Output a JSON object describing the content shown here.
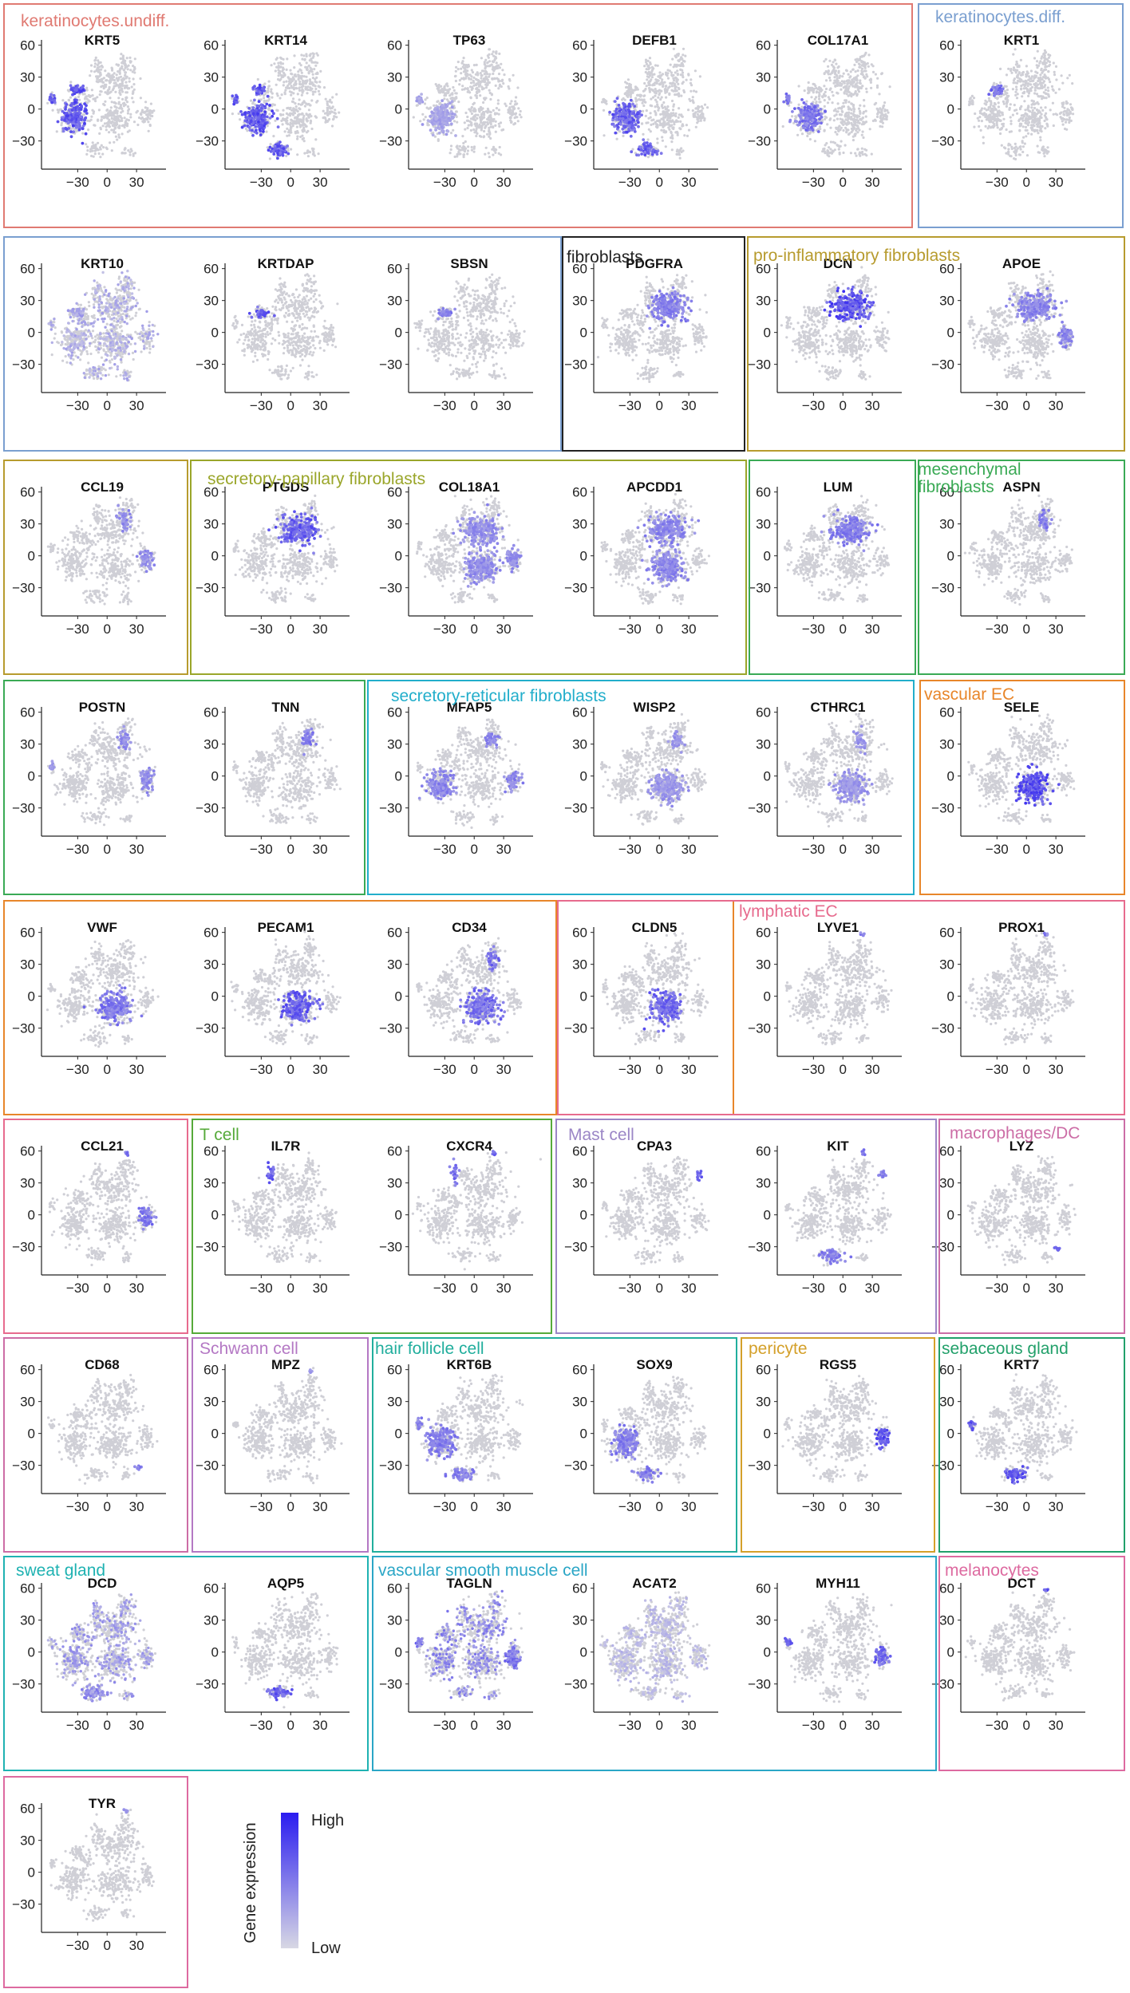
{
  "groups": [
    {
      "label": "keratinocytes.undiff.",
      "color": "#e07a72"
    },
    {
      "label": "keratinocytes.diff.",
      "color": "#7a9fd0"
    },
    {
      "label": "fibroblasts",
      "color": "#222222"
    },
    {
      "label": "pro-inflammatory fibroblasts",
      "color": "#b79b2e"
    },
    {
      "label": "secretory-papillary fibroblasts",
      "color": "#9aa62a"
    },
    {
      "label": "mesenchymal fibroblasts",
      "color": "#3aaa55"
    },
    {
      "label": "secretory-reticular fibroblasts",
      "color": "#22aecb"
    },
    {
      "label": "vascular EC",
      "color": "#e8862a"
    },
    {
      "label": "lymphatic EC",
      "color": "#e76b8e"
    },
    {
      "label": "T cell",
      "color": "#56aa3a"
    },
    {
      "label": "Mast cell",
      "color": "#9b86c6"
    },
    {
      "label": "macrophages/DC",
      "color": "#cc6da6"
    },
    {
      "label": "Schwann cell",
      "color": "#b478c4"
    },
    {
      "label": "hair follicle cell",
      "color": "#21ae9d"
    },
    {
      "label": "pericyte",
      "color": "#d4a02a"
    },
    {
      "label": "sebaceous gland",
      "color": "#22a06a"
    },
    {
      "label": "sweat gland",
      "color": "#1fb2b2"
    },
    {
      "label": "vascular smooth muscle cell",
      "color": "#2aa6c6"
    },
    {
      "label": "melanocytes",
      "color": "#dd6aa0"
    }
  ],
  "legend": {
    "title": "Gene expression",
    "high": "High",
    "low": "Low",
    "high_color": "#2a1cf0",
    "low_color": "#d8d8e4"
  },
  "chart_data": [
    {
      "type": "scatter",
      "title": "KRT5",
      "group": "keratinocytes.undiff.",
      "expressed_in": [
        "ker",
        "kd",
        "lg"
      ],
      "intensity": 0.85,
      "x_ticks": [
        -30,
        0,
        30
      ],
      "y_ticks": [
        60,
        30,
        0,
        -30
      ]
    },
    {
      "type": "scatter",
      "title": "KRT14",
      "group": "keratinocytes.undiff.",
      "expressed_in": [
        "ker",
        "kd",
        "lg",
        "bl"
      ],
      "intensity": 0.85,
      "x_ticks": [
        -30,
        0,
        30
      ],
      "y_ticks": [
        60,
        30,
        0,
        -30
      ]
    },
    {
      "type": "scatter",
      "title": "TP63",
      "group": "keratinocytes.undiff.",
      "expressed_in": [
        "ker",
        "lg"
      ],
      "intensity": 0.35,
      "x_ticks": [
        -30,
        0,
        30
      ],
      "y_ticks": [
        60,
        30,
        0,
        -30
      ]
    },
    {
      "type": "scatter",
      "title": "DEFB1",
      "group": "keratinocytes.undiff.",
      "expressed_in": [
        "ker",
        "bl"
      ],
      "intensity": 0.8,
      "x_ticks": [
        -30,
        0,
        30
      ],
      "y_ticks": [
        60,
        30,
        0,
        -30
      ]
    },
    {
      "type": "scatter",
      "title": "COL17A1",
      "group": "keratinocytes.undiff.",
      "expressed_in": [
        "ker",
        "lg"
      ],
      "intensity": 0.65,
      "x_ticks": [
        -30,
        0,
        30
      ],
      "y_ticks": [
        60,
        30,
        0,
        -30
      ]
    },
    {
      "type": "scatter",
      "title": "KRT1",
      "group": "keratinocytes.diff.",
      "expressed_in": [
        "kd"
      ],
      "intensity": 0.75,
      "x_ticks": [
        -30,
        0,
        30
      ],
      "y_ticks": [
        60,
        30,
        0,
        -30
      ]
    },
    {
      "type": "scatter",
      "title": "KRT10",
      "group": "keratinocytes.diff.",
      "expressed_in": [
        "kd",
        "all"
      ],
      "intensity": 0.4,
      "x_ticks": [
        -30,
        0,
        30
      ],
      "y_ticks": [
        60,
        30,
        0,
        -30
      ]
    },
    {
      "type": "scatter",
      "title": "KRTDAP",
      "group": "keratinocytes.diff.",
      "expressed_in": [
        "kd"
      ],
      "intensity": 0.8,
      "x_ticks": [
        -30,
        0,
        30
      ],
      "y_ticks": [
        60,
        30,
        0,
        -30
      ]
    },
    {
      "type": "scatter",
      "title": "SBSN",
      "group": "keratinocytes.diff.",
      "expressed_in": [
        "kd"
      ],
      "intensity": 0.6,
      "x_ticks": [
        -30,
        0,
        30
      ],
      "y_ticks": [
        60,
        30,
        0,
        -30
      ]
    },
    {
      "type": "scatter",
      "title": "PDGFRA",
      "group": "fibroblasts",
      "expressed_in": [
        "fib"
      ],
      "intensity": 0.6,
      "x_ticks": [
        -30,
        0,
        30
      ],
      "y_ticks": [
        60,
        30,
        0,
        -30
      ]
    },
    {
      "type": "scatter",
      "title": "DCN",
      "group": "pro-inflammatory fibroblasts",
      "expressed_in": [
        "fib"
      ],
      "intensity": 0.9,
      "x_ticks": [
        -30,
        0,
        30
      ],
      "y_ticks": [
        60,
        30,
        0,
        -30
      ]
    },
    {
      "type": "scatter",
      "title": "APOE",
      "group": "pro-inflammatory fibroblasts",
      "expressed_in": [
        "fib",
        "rt"
      ],
      "intensity": 0.55,
      "x_ticks": [
        -30,
        0,
        30
      ],
      "y_ticks": [
        60,
        30,
        0,
        -30
      ]
    },
    {
      "type": "scatter",
      "title": "CCL19",
      "group": "pro-inflammatory fibroblasts",
      "expressed_in": [
        "fibR",
        "rt"
      ],
      "intensity": 0.5,
      "x_ticks": [
        -30,
        0,
        30
      ],
      "y_ticks": [
        60,
        30,
        0,
        -30
      ]
    },
    {
      "type": "scatter",
      "title": "PTGDS",
      "group": "secretory-papillary fibroblasts",
      "expressed_in": [
        "fib"
      ],
      "intensity": 0.8,
      "x_ticks": [
        -30,
        0,
        30
      ],
      "y_ticks": [
        60,
        30,
        0,
        -30
      ]
    },
    {
      "type": "scatter",
      "title": "COL18A1",
      "group": "secretory-papillary fibroblasts",
      "expressed_in": [
        "fib",
        "vec",
        "rt"
      ],
      "intensity": 0.5,
      "x_ticks": [
        -30,
        0,
        30
      ],
      "y_ticks": [
        60,
        30,
        0,
        -30
      ]
    },
    {
      "type": "scatter",
      "title": "APCDD1",
      "group": "secretory-papillary fibroblasts",
      "expressed_in": [
        "fib",
        "vec"
      ],
      "intensity": 0.55,
      "x_ticks": [
        -30,
        0,
        30
      ],
      "y_ticks": [
        60,
        30,
        0,
        -30
      ]
    },
    {
      "type": "scatter",
      "title": "LUM",
      "group": "secretory-papillary fibroblasts",
      "expressed_in": [
        "fib"
      ],
      "intensity": 0.6,
      "x_ticks": [
        -30,
        0,
        30
      ],
      "y_ticks": [
        60,
        30,
        0,
        -30
      ]
    },
    {
      "type": "scatter",
      "title": "ASPN",
      "group": "mesenchymal fibroblasts",
      "expressed_in": [
        "fibR"
      ],
      "intensity": 0.6,
      "x_ticks": [
        -30,
        0,
        30
      ],
      "y_ticks": [
        60,
        30,
        0,
        -30
      ]
    },
    {
      "type": "scatter",
      "title": "POSTN",
      "group": "mesenchymal fibroblasts",
      "expressed_in": [
        "fibR",
        "lg",
        "rt"
      ],
      "intensity": 0.5,
      "x_ticks": [
        -30,
        0,
        30
      ],
      "y_ticks": [
        60,
        30,
        0,
        -30
      ]
    },
    {
      "type": "scatter",
      "title": "TNN",
      "group": "mesenchymal fibroblasts",
      "expressed_in": [
        "fibR"
      ],
      "intensity": 0.6,
      "x_ticks": [
        -30,
        0,
        30
      ],
      "y_ticks": [
        60,
        30,
        0,
        -30
      ]
    },
    {
      "type": "scatter",
      "title": "MFAP5",
      "group": "secretory-reticular fibroblasts",
      "expressed_in": [
        "fibR",
        "rt",
        "ker"
      ],
      "intensity": 0.55,
      "x_ticks": [
        -30,
        0,
        30
      ],
      "y_ticks": [
        60,
        30,
        0,
        -30
      ]
    },
    {
      "type": "scatter",
      "title": "WISP2",
      "group": "secretory-reticular fibroblasts",
      "expressed_in": [
        "fibR",
        "vec"
      ],
      "intensity": 0.45,
      "x_ticks": [
        -30,
        0,
        30
      ],
      "y_ticks": [
        60,
        30,
        0,
        -30
      ]
    },
    {
      "type": "scatter",
      "title": "CTHRC1",
      "group": "secretory-reticular fibroblasts",
      "expressed_in": [
        "fibR",
        "vec"
      ],
      "intensity": 0.45,
      "x_ticks": [
        -30,
        0,
        30
      ],
      "y_ticks": [
        60,
        30,
        0,
        -30
      ]
    },
    {
      "type": "scatter",
      "title": "SELE",
      "group": "vascular EC",
      "expressed_in": [
        "vec"
      ],
      "intensity": 0.9,
      "x_ticks": [
        -30,
        0,
        30
      ],
      "y_ticks": [
        60,
        30,
        0,
        -30
      ]
    },
    {
      "type": "scatter",
      "title": "VWF",
      "group": "vascular EC",
      "expressed_in": [
        "vec"
      ],
      "intensity": 0.65,
      "x_ticks": [
        -30,
        0,
        30
      ],
      "y_ticks": [
        60,
        30,
        0,
        -30
      ]
    },
    {
      "type": "scatter",
      "title": "PECAM1",
      "group": "vascular EC",
      "expressed_in": [
        "vec"
      ],
      "intensity": 0.8,
      "x_ticks": [
        -30,
        0,
        30
      ],
      "y_ticks": [
        60,
        30,
        0,
        -30
      ]
    },
    {
      "type": "scatter",
      "title": "CD34",
      "group": "vascular EC",
      "expressed_in": [
        "vec",
        "fibR"
      ],
      "intensity": 0.7,
      "x_ticks": [
        -30,
        0,
        30
      ],
      "y_ticks": [
        60,
        30,
        0,
        -30
      ]
    },
    {
      "type": "scatter",
      "title": "CLDN5",
      "group": "vascular EC",
      "expressed_in": [
        "vec"
      ],
      "intensity": 0.75,
      "x_ticks": [
        -30,
        0,
        30
      ],
      "y_ticks": [
        60,
        30,
        0,
        -30
      ]
    },
    {
      "type": "scatter",
      "title": "LYVE1",
      "group": "lymphatic EC",
      "expressed_in": [
        "top"
      ],
      "intensity": 0.6,
      "x_ticks": [
        -30,
        0,
        30
      ],
      "y_ticks": [
        60,
        30,
        0,
        -30
      ]
    },
    {
      "type": "scatter",
      "title": "PROX1",
      "group": "lymphatic EC",
      "expressed_in": [
        "top"
      ],
      "intensity": 0.6,
      "x_ticks": [
        -30,
        0,
        30
      ],
      "y_ticks": [
        60,
        30,
        0,
        -30
      ]
    },
    {
      "type": "scatter",
      "title": "CCL21",
      "group": "lymphatic EC",
      "expressed_in": [
        "top",
        "rt"
      ],
      "intensity": 0.65,
      "x_ticks": [
        -30,
        0,
        30
      ],
      "y_ticks": [
        60,
        30,
        0,
        -30
      ]
    },
    {
      "type": "scatter",
      "title": "IL7R",
      "group": "T cell",
      "expressed_in": [
        "tc"
      ],
      "intensity": 0.8,
      "x_ticks": [
        -30,
        0,
        30
      ],
      "y_ticks": [
        60,
        30,
        0,
        -30
      ]
    },
    {
      "type": "scatter",
      "title": "CXCR4",
      "group": "T cell",
      "expressed_in": [
        "tc",
        "top"
      ],
      "intensity": 0.7,
      "x_ticks": [
        -30,
        0,
        30
      ],
      "y_ticks": [
        60,
        30,
        0,
        -30
      ]
    },
    {
      "type": "scatter",
      "title": "CPA3",
      "group": "Mast cell",
      "expressed_in": [
        "mc"
      ],
      "intensity": 0.75,
      "x_ticks": [
        -30,
        0,
        30
      ],
      "y_ticks": [
        60,
        30,
        0,
        -30
      ]
    },
    {
      "type": "scatter",
      "title": "KIT",
      "group": "Mast cell",
      "expressed_in": [
        "mc",
        "top",
        "bl"
      ],
      "intensity": 0.6,
      "x_ticks": [
        -30,
        0,
        30
      ],
      "y_ticks": [
        60,
        30,
        0,
        -30
      ]
    },
    {
      "type": "scatter",
      "title": "LYZ",
      "group": "macrophages/DC",
      "expressed_in": [
        "mac"
      ],
      "intensity": 0.75,
      "x_ticks": [
        -30,
        0,
        30
      ],
      "y_ticks": [
        60,
        30,
        0,
        -30
      ]
    },
    {
      "type": "scatter",
      "title": "CD68",
      "group": "macrophages/DC",
      "expressed_in": [
        "mac"
      ],
      "intensity": 0.6,
      "x_ticks": [
        -30,
        0,
        30
      ],
      "y_ticks": [
        60,
        30,
        0,
        -30
      ]
    },
    {
      "type": "scatter",
      "title": "MPZ",
      "group": "Schwann cell",
      "expressed_in": [
        "top"
      ],
      "intensity": 0.4,
      "x_ticks": [
        -30,
        0,
        30
      ],
      "y_ticks": [
        60,
        30,
        0,
        -30
      ]
    },
    {
      "type": "scatter",
      "title": "KRT6B",
      "group": "hair follicle cell",
      "expressed_in": [
        "ker",
        "lg",
        "bl"
      ],
      "intensity": 0.6,
      "x_ticks": [
        -30,
        0,
        30
      ],
      "y_ticks": [
        60,
        30,
        0,
        -30
      ]
    },
    {
      "type": "scatter",
      "title": "SOX9",
      "group": "hair follicle cell",
      "expressed_in": [
        "ker",
        "bl"
      ],
      "intensity": 0.6,
      "x_ticks": [
        -30,
        0,
        30
      ],
      "y_ticks": [
        60,
        30,
        0,
        -30
      ]
    },
    {
      "type": "scatter",
      "title": "RGS5",
      "group": "pericyte",
      "expressed_in": [
        "rt"
      ],
      "intensity": 0.9,
      "x_ticks": [
        -30,
        0,
        30
      ],
      "y_ticks": [
        60,
        30,
        0,
        -30
      ]
    },
    {
      "type": "scatter",
      "title": "KRT7",
      "group": "sebaceous gland",
      "expressed_in": [
        "bl",
        "lg"
      ],
      "intensity": 0.85,
      "x_ticks": [
        -30,
        0,
        30
      ],
      "y_ticks": [
        60,
        30,
        0,
        -30
      ]
    },
    {
      "type": "scatter",
      "title": "DCD",
      "group": "sweat gland",
      "expressed_in": [
        "bl",
        "all"
      ],
      "intensity": 0.55,
      "x_ticks": [
        -30,
        0,
        30
      ],
      "y_ticks": [
        60,
        30,
        0,
        -30
      ]
    },
    {
      "type": "scatter",
      "title": "AQP5",
      "group": "sweat gland",
      "expressed_in": [
        "bl"
      ],
      "intensity": 0.8,
      "x_ticks": [
        -30,
        0,
        30
      ],
      "y_ticks": [
        60,
        30,
        0,
        -30
      ]
    },
    {
      "type": "scatter",
      "title": "TAGLN",
      "group": "vascular smooth muscle cell",
      "expressed_in": [
        "rt",
        "lg",
        "all"
      ],
      "intensity": 0.7,
      "x_ticks": [
        -30,
        0,
        30
      ],
      "y_ticks": [
        60,
        30,
        0,
        -30
      ]
    },
    {
      "type": "scatter",
      "title": "ACAT2",
      "group": "vascular smooth muscle cell",
      "expressed_in": [
        "all"
      ],
      "intensity": 0.3,
      "x_ticks": [
        -30,
        0,
        30
      ],
      "y_ticks": [
        60,
        30,
        0,
        -30
      ]
    },
    {
      "type": "scatter",
      "title": "MYH11",
      "group": "vascular smooth muscle cell",
      "expressed_in": [
        "rt",
        "lg"
      ],
      "intensity": 0.75,
      "x_ticks": [
        -30,
        0,
        30
      ],
      "y_ticks": [
        60,
        30,
        0,
        -30
      ]
    },
    {
      "type": "scatter",
      "title": "DCT",
      "group": "melanocytes",
      "expressed_in": [
        "top"
      ],
      "intensity": 0.85,
      "x_ticks": [
        -30,
        0,
        30
      ],
      "y_ticks": [
        60,
        30,
        0,
        -30
      ]
    },
    {
      "type": "scatter",
      "title": "TYR",
      "group": "melanocytes",
      "expressed_in": [
        "top"
      ],
      "intensity": 0.4,
      "x_ticks": [
        -30,
        0,
        30
      ],
      "y_ticks": [
        60,
        30,
        0,
        -30
      ]
    }
  ]
}
